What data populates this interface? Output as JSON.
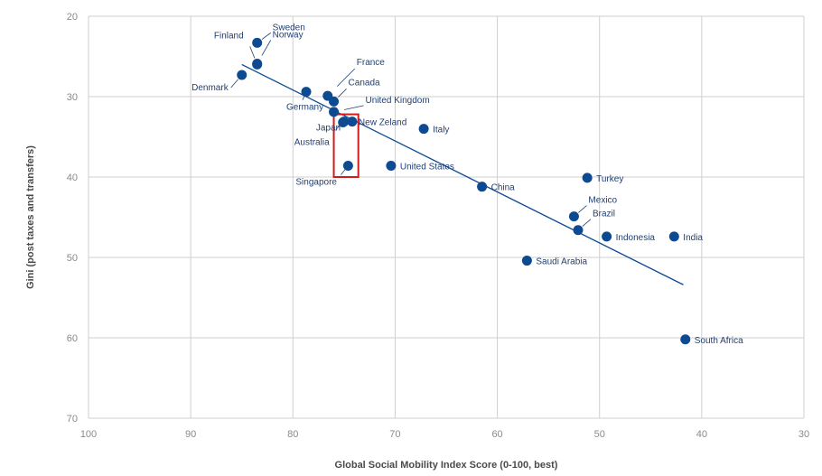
{
  "chart_data": {
    "type": "scatter",
    "title": "",
    "xlabel": "Global Social Mobility Index Score (0-100, best)",
    "ylabel": "Gini (post taxes and transfers)",
    "xlim": [
      100,
      30
    ],
    "ylim": [
      20,
      70
    ],
    "x_reversed": true,
    "y_reversed": true,
    "x_ticks": [
      "100",
      "90",
      "80",
      "70",
      "60",
      "50",
      "40",
      "30"
    ],
    "y_ticks": [
      "20",
      "30",
      "40",
      "50",
      "60",
      "70"
    ],
    "grid": true,
    "point_color": "#0d4a91",
    "trendline": {
      "x": [
        85.0,
        41.8
      ],
      "y": [
        26.0,
        53.4
      ],
      "color": "#0d4a91"
    },
    "highlight_box": {
      "x_range": [
        76.0,
        73.6
      ],
      "y_range": [
        32.2,
        40.0
      ],
      "color": "#d01c1c"
    },
    "points": [
      {
        "label": "Sweden",
        "x": 83.5,
        "y": 23.3
      },
      {
        "label": "Finland",
        "x": 83.5,
        "y": 26.0
      },
      {
        "label": "Norway",
        "x": 83.5,
        "y": 25.9
      },
      {
        "label": "Denmark",
        "x": 85.0,
        "y": 27.3
      },
      {
        "label": "France",
        "x": 76.6,
        "y": 29.9
      },
      {
        "label": "Germany",
        "x": 78.7,
        "y": 29.4
      },
      {
        "label": "Canada",
        "x": 76.0,
        "y": 30.6
      },
      {
        "label": "United Kingdom",
        "x": 76.0,
        "y": 31.9
      },
      {
        "label": "Japan",
        "x": 75.0,
        "y": 33.1
      },
      {
        "label": "Australia",
        "x": 75.1,
        "y": 33.2
      },
      {
        "label": "New Zeland",
        "x": 74.2,
        "y": 33.1
      },
      {
        "label": "Singapore",
        "x": 74.6,
        "y": 38.6
      },
      {
        "label": "United States",
        "x": 70.4,
        "y": 38.6
      },
      {
        "label": "Italy",
        "x": 67.2,
        "y": 34.0
      },
      {
        "label": "China",
        "x": 61.5,
        "y": 41.2
      },
      {
        "label": "Turkey",
        "x": 51.2,
        "y": 40.1
      },
      {
        "label": "Mexico",
        "x": 52.5,
        "y": 44.9
      },
      {
        "label": "Brazil",
        "x": 52.1,
        "y": 46.6
      },
      {
        "label": "Indonesia",
        "x": 49.3,
        "y": 47.4
      },
      {
        "label": "India",
        "x": 42.7,
        "y": 47.4
      },
      {
        "label": "Saudi Arabia",
        "x": 57.1,
        "y": 50.4
      },
      {
        "label": "South Africa",
        "x": 41.6,
        "y": 60.2
      }
    ]
  }
}
